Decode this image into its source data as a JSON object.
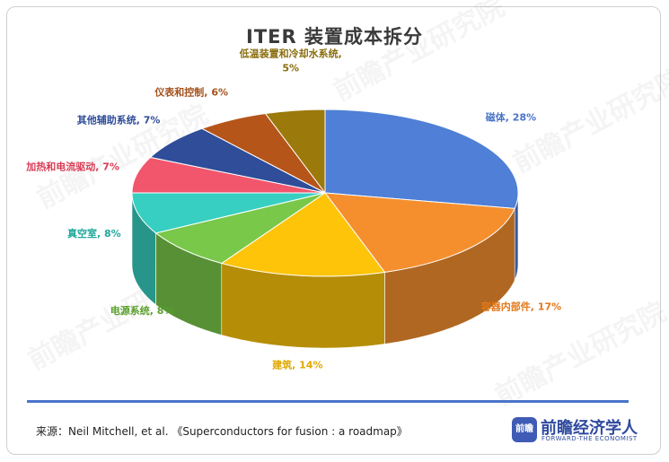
{
  "chart_data": {
    "type": "pie",
    "title": "ITER 装置成本拆分",
    "slices": [
      {
        "label": "磁体",
        "value": 28,
        "label_text": "磁体, 28%",
        "color": "#4f7fd6",
        "label_color": "#4a74c9"
      },
      {
        "label": "容器内部件",
        "value": 17,
        "label_text": "容器内部件, 17%",
        "color": "#f58f2e",
        "label_color": "#e3781a"
      },
      {
        "label": "建筑",
        "value": 14,
        "label_text": "建筑, 14%",
        "color": "#fdc40a",
        "label_color": "#e0a800"
      },
      {
        "label": "电源系统",
        "value": 8,
        "label_text": "电源系统, 8%",
        "color": "#79c84a",
        "label_color": "#5aa02c"
      },
      {
        "label": "真空室",
        "value": 8,
        "label_text": "真空室, 8%",
        "color": "#37cfc1",
        "label_color": "#1fa89b"
      },
      {
        "label": "加热和电流驱动",
        "value": 7,
        "label_text": "加热和电流驱动, 7%",
        "color": "#f2566d",
        "label_color": "#d93c55"
      },
      {
        "label": "其他辅助系统",
        "value": 7,
        "label_text": "其他辅助系统, 7%",
        "color": "#2f4d99",
        "label_color": "#2f4d99"
      },
      {
        "label": "仪表和控制",
        "value": 6,
        "label_text": "仪表和控制, 6%",
        "color": "#b5551a",
        "label_color": "#a4511c"
      },
      {
        "label": "低温装置和冷却水系统",
        "value": 5,
        "label_text_line1": "低温装置和冷却水系统,",
        "label_text_line2": "5%",
        "color": "#9b7a0b",
        "label_color": "#8a6d0c"
      }
    ]
  },
  "source": "来源：Neil Mitchell, et al. 《Superconductors for fusion : a roadmap》",
  "brand": {
    "logo_text": "前瞻",
    "name": "前瞻经济学人",
    "subtitle": "FORWARD-THE ECONOMIST"
  }
}
